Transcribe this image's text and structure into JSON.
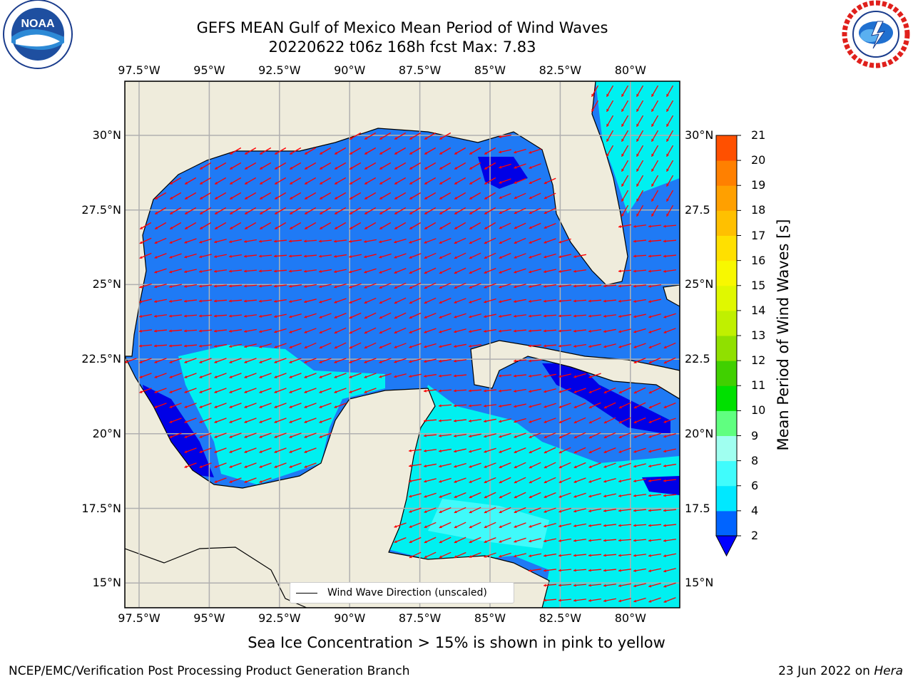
{
  "title": {
    "line1": "GEFS MEAN Gulf of Mexico Mean Period of Wind Waves",
    "line2": "20220622 t06z 168h fcst   Max: 7.83"
  },
  "map": {
    "lon_labels": [
      "97.5°W",
      "95°W",
      "92.5°W",
      "90°W",
      "87.5°W",
      "85°W",
      "82.5°W",
      "80°W"
    ],
    "lat_labels": [
      "30°N",
      "27.5°N",
      "25°N",
      "22.5°N",
      "20°N",
      "17.5°N",
      "15°N"
    ],
    "lat_labels_right": [
      "30°N",
      "27.5",
      "25°N",
      "22.5",
      "20°N",
      "17.5",
      "15°N"
    ],
    "colors": {
      "land": "#efecdc",
      "deep_blue": "#0000e6",
      "blue": "#1f7af5",
      "cyan": "#00f0f0",
      "light_cyan": "#40fafa",
      "arrow": "#ff0000",
      "grid": "#b0b0b0"
    }
  },
  "legend": {
    "label": "Wind Wave Direction (unscaled)"
  },
  "colorbar": {
    "label": "Mean Period of Wind Waves [s]",
    "ticks": [
      "2",
      "4",
      "6",
      "8",
      "9",
      "10",
      "11",
      "12",
      "13",
      "14",
      "15",
      "16",
      "17",
      "18",
      "19",
      "20",
      "21"
    ],
    "colors": [
      "#0064ff",
      "#00e8ff",
      "#40fcfc",
      "#a0fff0",
      "#60ff80",
      "#00e000",
      "#40d000",
      "#90e000",
      "#c0f000",
      "#e0f800",
      "#f8f800",
      "#ffe000",
      "#ffc000",
      "#ffa000",
      "#ff8000",
      "#ff5000",
      "#ff2000",
      "#ff0000"
    ],
    "extend_color": "#0000ff"
  },
  "note": "Sea Ice Concentration > 15% is shown in pink to yellow",
  "footer": {
    "left": "NCEP/EMC/Verification Post Processing Product Generation Branch",
    "right_date": "23 Jun 2022 on",
    "right_host": "Hera"
  },
  "logos": {
    "left": "NOAA",
    "right": "NATIONAL WEATHER SERVICE"
  }
}
